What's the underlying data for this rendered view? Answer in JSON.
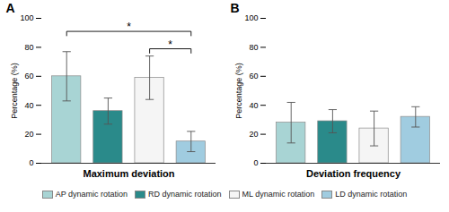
{
  "chart_data": [
    {
      "type": "bar",
      "title": "A",
      "xlabel": "Maximum deviation",
      "ylabel": "Percentage (%)",
      "categories": [
        "AP dynamic rotation",
        "RD dynamic rotation",
        "ML dynamic rotation",
        "LD dynamic rotation"
      ],
      "values": [
        60,
        36,
        59,
        15
      ],
      "errors": [
        17,
        9,
        15,
        7
      ],
      "colors": [
        "#a8d4d4",
        "#2a8a8a",
        "#f5f5f5",
        "#a0cce0"
      ],
      "ylim": [
        0,
        100
      ],
      "yticks": [
        0,
        20,
        40,
        60,
        80,
        100
      ],
      "grid": false,
      "tick_labels": "y",
      "legend": "bottom",
      "annotations": [
        {
          "text": "*",
          "from": "AP dynamic rotation",
          "to": "LD dynamic rotation",
          "y": 91
        },
        {
          "text": "*",
          "from": "ML dynamic rotation",
          "to": "LD dynamic rotation",
          "y": 79
        }
      ]
    },
    {
      "type": "bar",
      "title": "B",
      "xlabel": "Deviation frequency",
      "ylabel": "Percentage (%)",
      "categories": [
        "AP dynamic rotation",
        "RD dynamic rotation",
        "ML dynamic rotation",
        "LD dynamic rotation"
      ],
      "values": [
        28,
        29,
        24,
        32
      ],
      "errors": [
        14,
        8,
        12,
        7
      ],
      "colors": [
        "#a8d4d4",
        "#2a8a8a",
        "#f5f5f5",
        "#a0cce0"
      ],
      "ylim": [
        0,
        100
      ],
      "yticks": [
        0,
        20,
        40,
        60,
        80,
        100
      ],
      "grid": false,
      "tick_labels": "y",
      "legend": "bottom"
    }
  ]
}
